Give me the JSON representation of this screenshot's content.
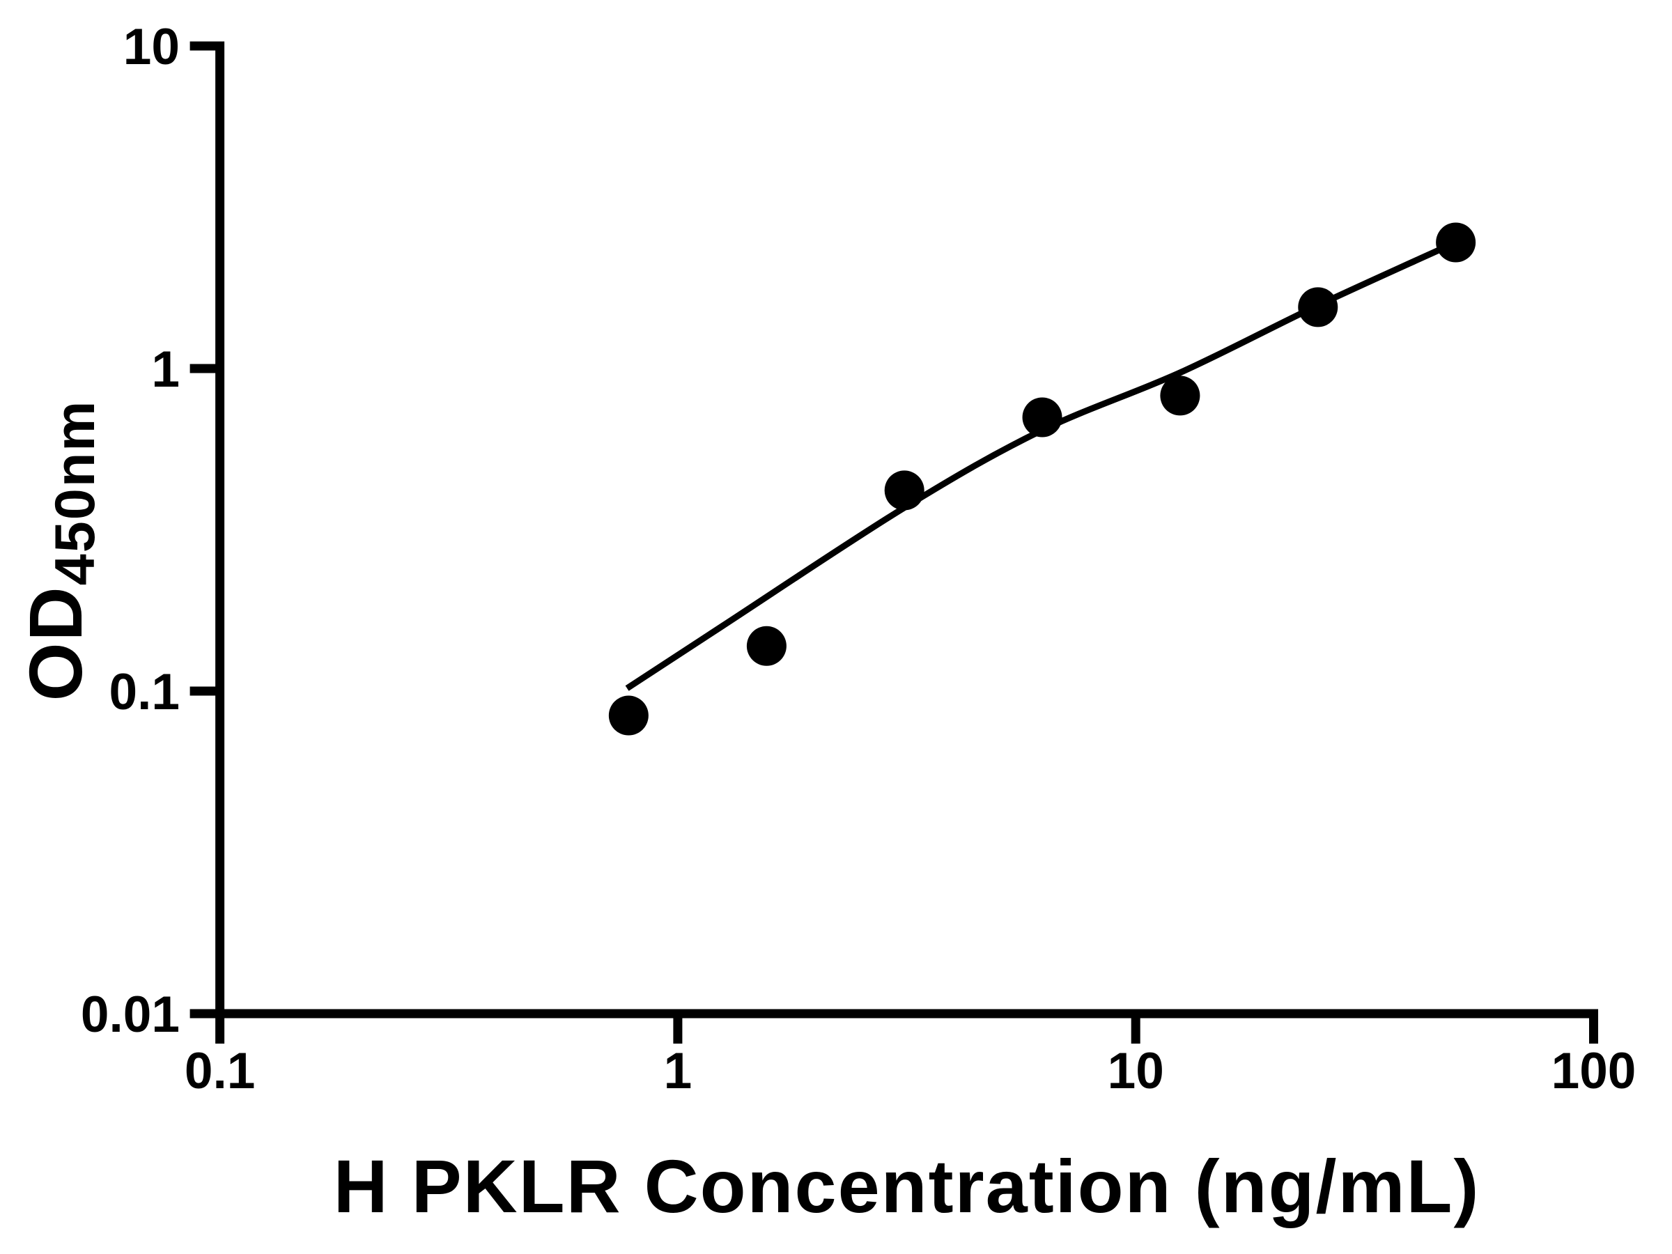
{
  "figure": {
    "background_color": "#ffffff",
    "ink_color": "#000000"
  },
  "chart_data": {
    "type": "scatter",
    "title": "",
    "xlabel": "H PKLR Concentration (ng/mL)",
    "ylabel": "OD450nm",
    "ylabel_main": "OD",
    "ylabel_sub": "450nm",
    "x_scale": "log",
    "y_scale": "log",
    "xlim": [
      0.1,
      100
    ],
    "ylim": [
      0.01,
      10
    ],
    "grid": false,
    "legend": "none",
    "x_ticks": [
      {
        "value": 0.1,
        "label": "0.1"
      },
      {
        "value": 1,
        "label": "1"
      },
      {
        "value": 10,
        "label": "10"
      },
      {
        "value": 100,
        "label": "100"
      }
    ],
    "y_ticks": [
      {
        "value": 0.01,
        "label": "0.01"
      },
      {
        "value": 0.1,
        "label": "0.1"
      },
      {
        "value": 1,
        "label": "1"
      },
      {
        "value": 10,
        "label": "10"
      }
    ],
    "series": [
      {
        "name": "standard-points",
        "kind": "scatter",
        "marker": "filled-circle",
        "color": "#000000",
        "x": [
          0.781,
          1.563,
          3.125,
          6.25,
          12.5,
          25,
          50
        ],
        "y": [
          0.084,
          0.138,
          0.419,
          0.706,
          0.824,
          1.55,
          2.46
        ]
      },
      {
        "name": "fit-curve",
        "kind": "line",
        "marker": "none",
        "color": "#000000",
        "x": [
          0.775,
          1.25,
          3.12,
          6.18,
          12.5,
          24.9,
          49.6
        ],
        "y": [
          0.102,
          0.159,
          0.37,
          0.639,
          0.971,
          1.565,
          2.448
        ]
      }
    ]
  }
}
